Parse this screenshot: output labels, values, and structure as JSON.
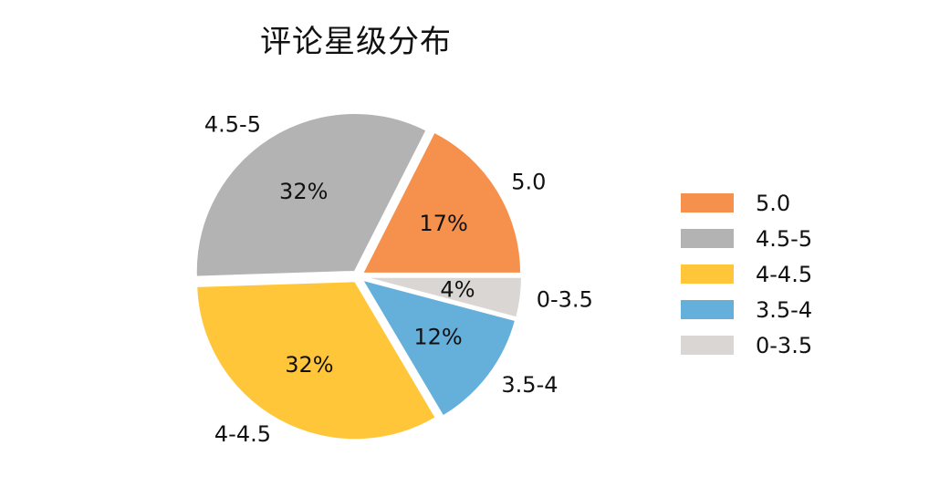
{
  "chart_data": {
    "type": "pie",
    "title": "评论星级分布",
    "categories": [
      "5.0",
      "4.5-5",
      "4-4.5",
      "3.5-4",
      "0-3.5"
    ],
    "values": [
      17,
      32,
      32,
      12,
      4
    ],
    "percent_labels": [
      "17%",
      "32%",
      "32%",
      "12%",
      "4%"
    ],
    "colors": [
      "#F5914D",
      "#B3B3B3",
      "#FFC639",
      "#65AFDB",
      "#DAD6D3"
    ],
    "legend": {
      "placement": "right",
      "entries": [
        "5.0",
        "4.5-5",
        "4-4.5",
        "3.5-4",
        "0-3.5"
      ]
    },
    "start_angle_deg": 0,
    "direction": "counterclockwise",
    "explode": true
  }
}
